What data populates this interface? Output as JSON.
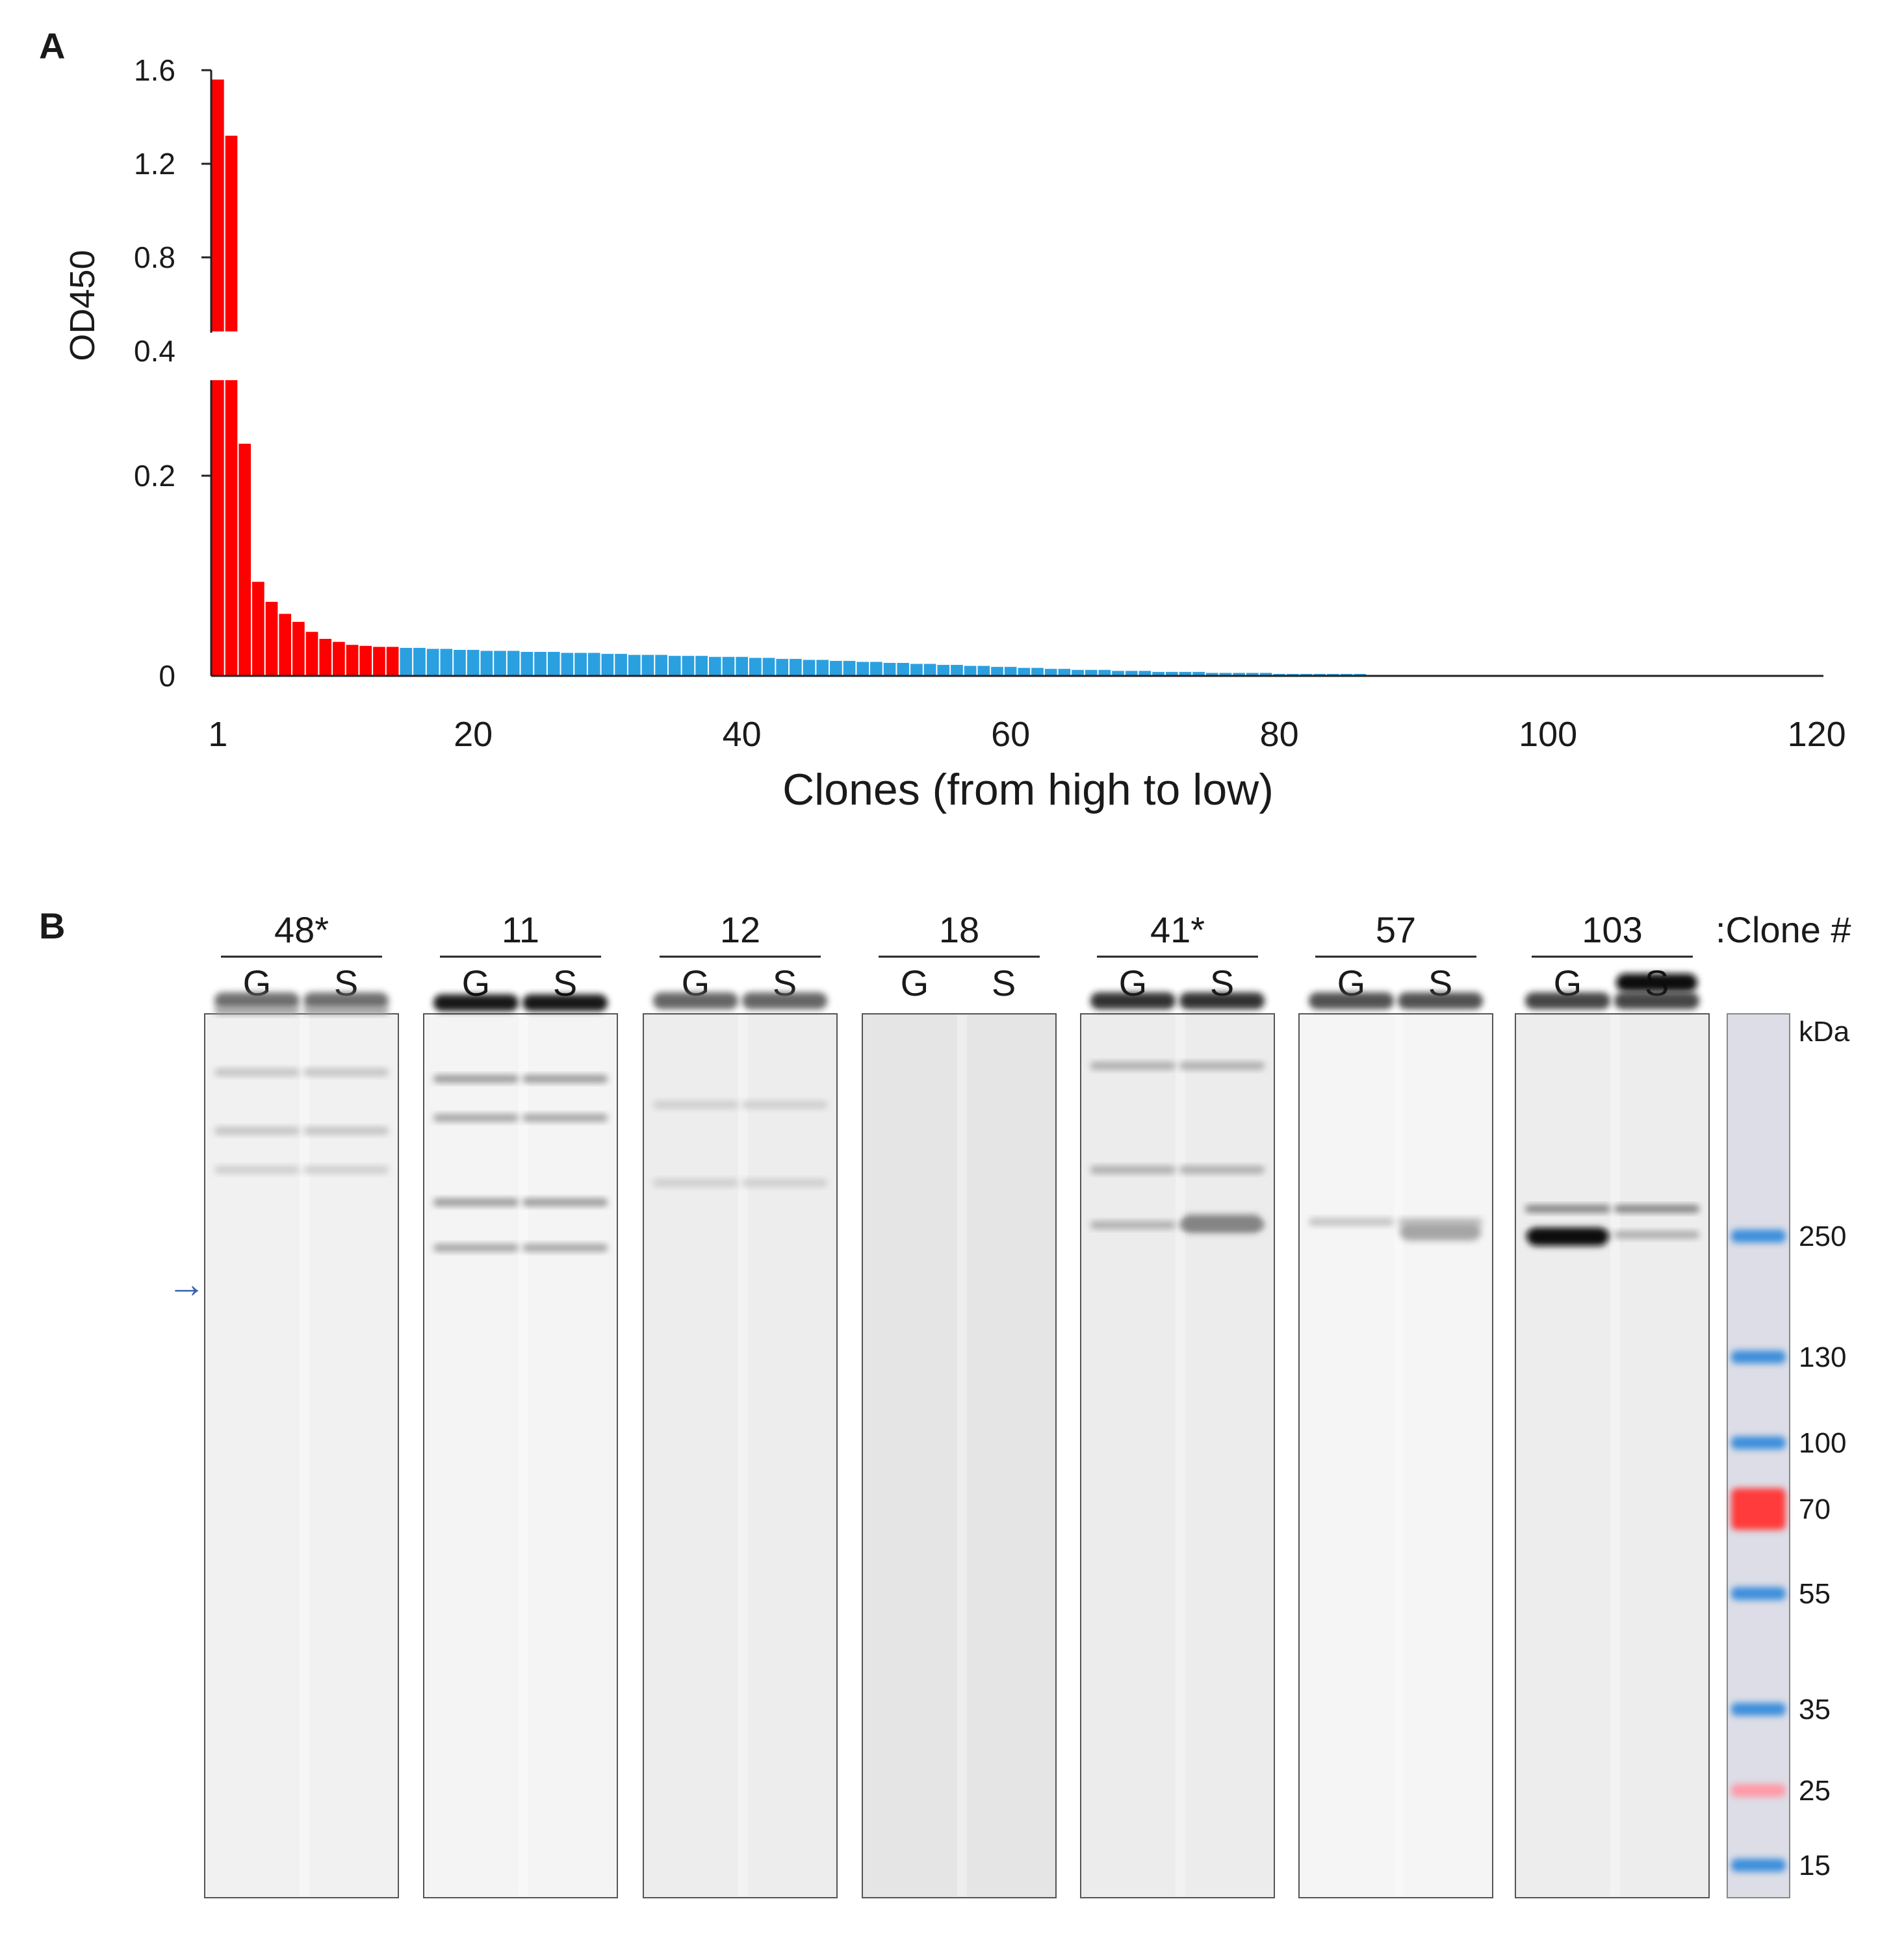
{
  "panels": {
    "a_label": "A",
    "b_label": "B"
  },
  "chart_data": {
    "type": "bar",
    "title": "",
    "xlabel": "Clones (from high to low)",
    "ylabel": "OD450",
    "x_ticks": [
      "1",
      "20",
      "40",
      "60",
      "80",
      "100",
      "120"
    ],
    "y_ticks_upper": [
      "1.6",
      "1.2",
      "0.8",
      "0.4"
    ],
    "y_ticks_lower": [
      "0.2",
      "0"
    ],
    "broken_axis": true,
    "lower_range": [
      0,
      0.3
    ],
    "upper_range": [
      0.4,
      1.6
    ],
    "grid": false,
    "legend": "none",
    "colors": {
      "positive": "#ff0000",
      "negative": "#2aa0e0"
    },
    "positive_count": 14,
    "values": [
      1.56,
      1.32,
      0.232,
      0.094,
      0.074,
      0.062,
      0.054,
      0.044,
      0.037,
      0.034,
      0.031,
      0.03,
      0.029,
      0.029,
      0.028,
      0.028,
      0.027,
      0.027,
      0.026,
      0.026,
      0.025,
      0.025,
      0.025,
      0.024,
      0.024,
      0.024,
      0.023,
      0.023,
      0.023,
      0.022,
      0.022,
      0.021,
      0.021,
      0.021,
      0.02,
      0.02,
      0.02,
      0.019,
      0.019,
      0.019,
      0.018,
      0.018,
      0.017,
      0.017,
      0.016,
      0.016,
      0.015,
      0.015,
      0.014,
      0.014,
      0.013,
      0.013,
      0.012,
      0.012,
      0.011,
      0.011,
      0.01,
      0.01,
      0.009,
      0.009,
      0.008,
      0.008,
      0.007,
      0.007,
      0.006,
      0.006,
      0.006,
      0.005,
      0.005,
      0.005,
      0.004,
      0.004,
      0.004,
      0.004,
      0.003,
      0.003,
      0.003,
      0.003,
      0.003,
      0.002,
      0.002,
      0.002,
      0.002,
      0.002,
      0.002,
      0.002,
      0.001,
      0.001,
      0.001,
      0.001,
      0.001,
      0.001,
      0.001,
      0.001,
      0.001,
      0.001,
      0.001,
      0.001,
      0.001,
      0.001,
      0.001,
      0.001,
      0.001,
      0.001,
      0.001,
      0.001,
      0.001,
      0.001,
      0.001,
      0.001,
      0.001,
      0.001,
      0.001,
      0.001,
      0.001,
      0.001,
      0.001,
      0.001,
      0.001,
      0.001
    ]
  },
  "blot": {
    "clone_header": ":Clone #",
    "kda_label": "kDa",
    "arrow": "→",
    "groups": [
      {
        "clone": "48*",
        "lanes": [
          "G",
          "S"
        ]
      },
      {
        "clone": "11",
        "lanes": [
          "G",
          "S"
        ]
      },
      {
        "clone": "12",
        "lanes": [
          "G",
          "S"
        ]
      },
      {
        "clone": "18",
        "lanes": [
          "G",
          "S"
        ]
      },
      {
        "clone": "41*",
        "lanes": [
          "G",
          "S"
        ]
      },
      {
        "clone": "57",
        "lanes": [
          "G",
          "S"
        ]
      },
      {
        "clone": "103",
        "lanes": [
          "G",
          "S"
        ]
      }
    ],
    "markers": [
      "250",
      "130",
      "100",
      "70",
      "55",
      "35",
      "25",
      "15"
    ],
    "marker_colors": {
      "blue": "#3d8fdc",
      "red": "#ff3b3b",
      "pink": "#ff9aa8"
    }
  }
}
